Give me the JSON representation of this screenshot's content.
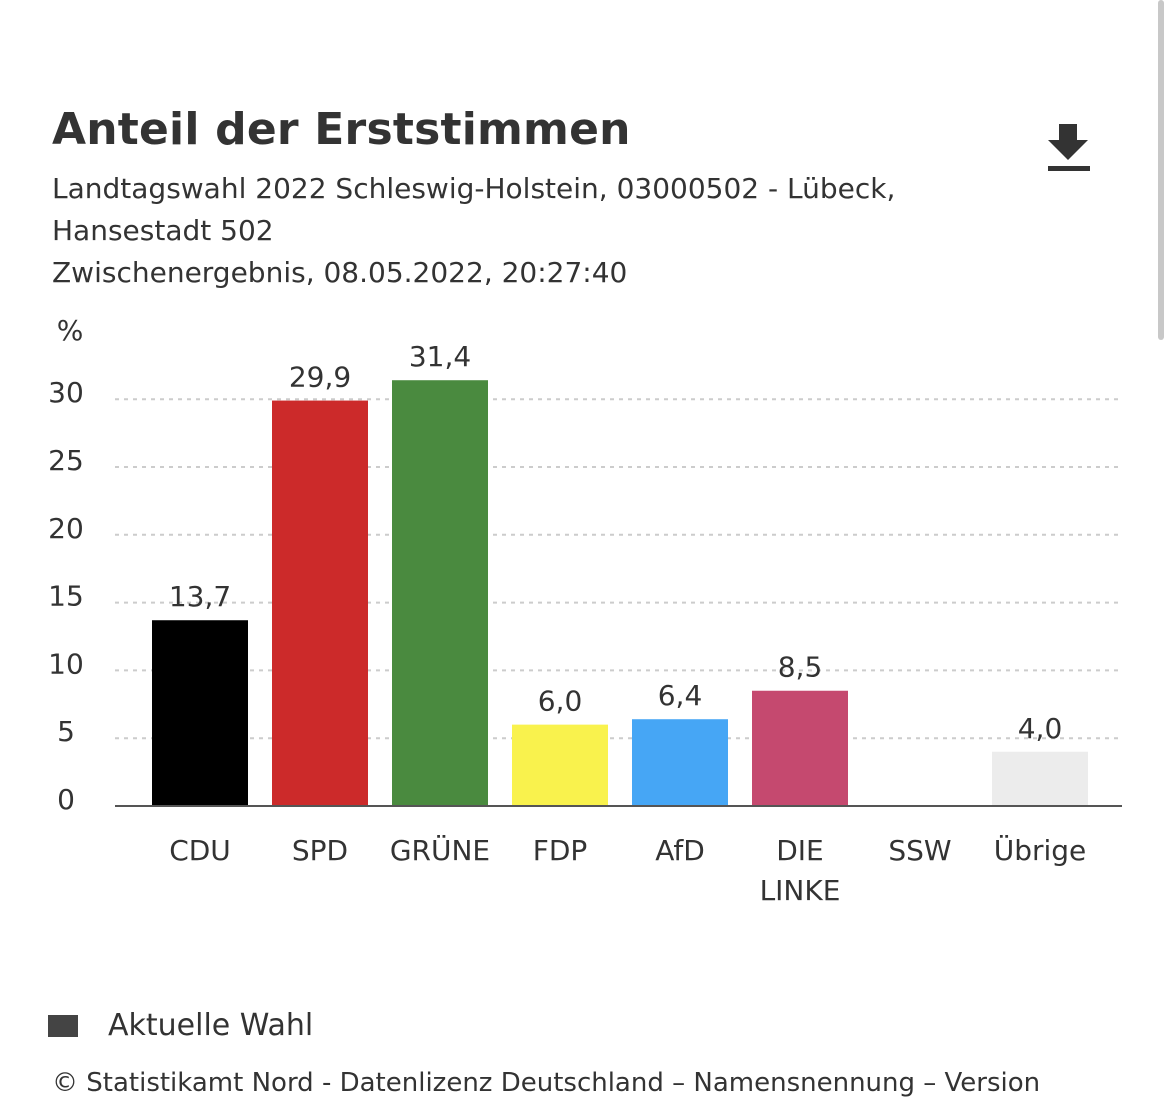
{
  "header": {
    "title": "Anteil der Erststimmen",
    "subtitle_line1": "Landtagswahl 2022 Schleswig-Holstein, 03000502 - Lübeck,",
    "subtitle_line2": "Hansestadt 502",
    "subtitle_line3": "Zwischenergebnis, 08.05.2022, 20:27:40"
  },
  "toolbar": {
    "download_icon": "download-icon"
  },
  "legend": {
    "label": "Aktuelle Wahl",
    "color": "#444444"
  },
  "footer": {
    "text": "© Statistikamt Nord - Datenlizenz Deutschland – Namensnennung – Version"
  },
  "chart_data": {
    "type": "bar",
    "title": "Anteil der Erststimmen",
    "ylabel": "%",
    "xlabel": "",
    "ylim": [
      0,
      32
    ],
    "yticks": [
      "0",
      "5",
      "10",
      "15",
      "20",
      "25",
      "30"
    ],
    "grid": true,
    "categories": [
      "CDU",
      "SPD",
      "GRÜNE",
      "FDP",
      "AfD",
      "DIE LINKE",
      "SSW",
      "Übrige"
    ],
    "category_lines": [
      [
        "CDU"
      ],
      [
        "SPD"
      ],
      [
        "GRÜNE"
      ],
      [
        "FDP"
      ],
      [
        "AfD"
      ],
      [
        "DIE",
        "LINKE"
      ],
      [
        "SSW"
      ],
      [
        "Übrige"
      ]
    ],
    "values": [
      13.7,
      29.9,
      31.4,
      6.0,
      6.4,
      8.5,
      null,
      4.0
    ],
    "labels": [
      "13,7",
      "29,9",
      "31,4",
      "6,0",
      "6,4",
      "8,5",
      "",
      "4,0"
    ],
    "colors": [
      "#000000",
      "#cc2a2a",
      "#4a8a3f",
      "#f9f24d",
      "#46a6f5",
      "#c5496f",
      "#1a4e8c",
      "#ececec"
    ],
    "series": [
      {
        "name": "Aktuelle Wahl"
      }
    ]
  }
}
